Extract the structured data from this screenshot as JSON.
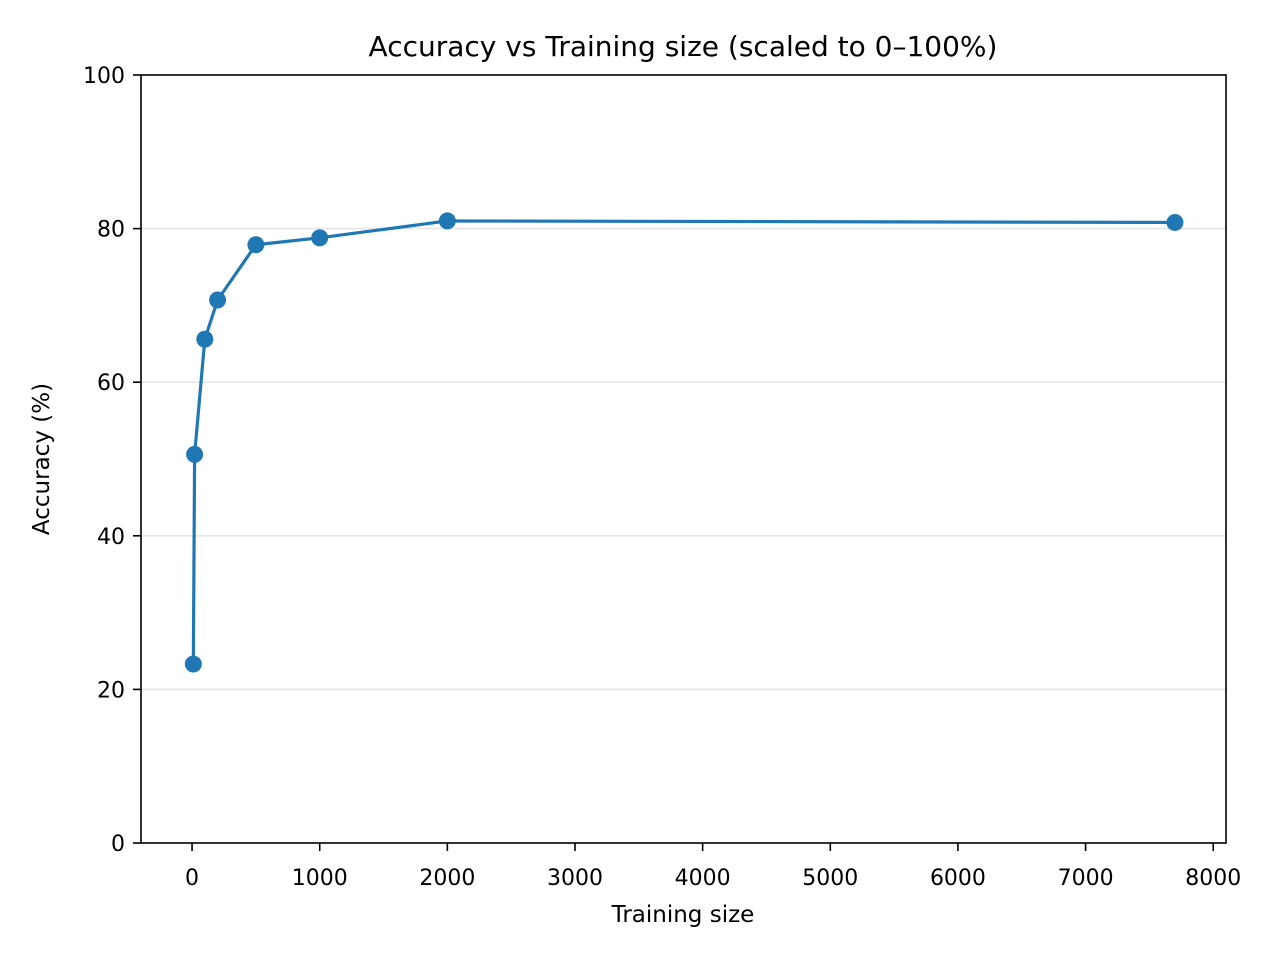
{
  "chart_data": {
    "type": "line",
    "title": "Accuracy vs Training size (scaled to 0–100%)",
    "xlabel": "Training size",
    "ylabel": "Accuracy (%)",
    "xlim": [
      -400,
      8100
    ],
    "ylim": [
      0,
      100
    ],
    "xticks": [
      0,
      1000,
      2000,
      3000,
      4000,
      5000,
      6000,
      7000,
      8000
    ],
    "yticks": [
      0,
      20,
      40,
      60,
      80,
      100
    ],
    "grid": "y-axis horizontal lines",
    "color": "#1f77b4",
    "marker": "circle",
    "series": [
      {
        "x": [
          10,
          20,
          100,
          200,
          500,
          1000,
          2000,
          7700
        ],
        "values": [
          23.3,
          50.6,
          65.6,
          70.7,
          77.9,
          78.8,
          81.0,
          80.8
        ]
      }
    ]
  }
}
